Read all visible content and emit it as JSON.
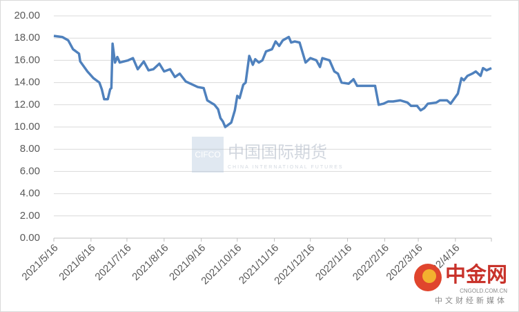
{
  "chart_data": {
    "type": "line",
    "x": [
      "2021/5/16",
      "2021/5/23",
      "2021/5/28",
      "2021/6/1",
      "2021/6/6",
      "2021/6/7",
      "2021/6/13",
      "2021/6/18",
      "2021/6/23",
      "2021/6/25",
      "2021/6/27",
      "2021/6/30",
      "2021/7/2",
      "2021/7/3",
      "2021/7/4",
      "2021/7/6",
      "2021/7/8",
      "2021/7/10",
      "2021/7/17",
      "2021/7/21",
      "2021/7/25",
      "2021/7/30",
      "2021/8/3",
      "2021/8/7",
      "2021/8/12",
      "2021/8/16",
      "2021/8/21",
      "2021/8/25",
      "2021/8/29",
      "2021/9/3",
      "2021/9/9",
      "2021/9/13",
      "2021/9/18",
      "2021/9/21",
      "2021/9/24",
      "2021/9/27",
      "2021/9/30",
      "2021/10/2",
      "2021/10/4",
      "2021/10/6",
      "2021/10/11",
      "2021/10/14",
      "2021/10/16",
      "2021/10/18",
      "2021/10/21",
      "2021/10/23",
      "2021/10/26",
      "2021/10/29",
      "2021/10/31",
      "2021/11/3",
      "2021/11/6",
      "2021/11/9",
      "2021/11/14",
      "2021/11/17",
      "2021/11/20",
      "2021/11/23",
      "2021/11/28",
      "2021/11/30",
      "2021/12/3",
      "2021/12/7",
      "2021/12/12",
      "2021/12/16",
      "2021/12/21",
      "2021/12/24",
      "2021/12/26",
      "2022/1/1",
      "2022/1/5",
      "2022/1/8",
      "2022/1/11",
      "2022/1/17",
      "2022/1/21",
      "2022/1/24",
      "2022/1/31",
      "2022/2/8",
      "2022/2/11",
      "2022/2/15",
      "2022/2/19",
      "2022/2/23",
      "2022/3/1",
      "2022/3/7",
      "2022/3/10",
      "2022/3/15",
      "2022/3/18",
      "2022/3/21",
      "2022/3/24",
      "2022/3/31",
      "2022/4/3",
      "2022/4/9",
      "2022/4/12",
      "2022/4/16",
      "2022/4/18",
      "2022/4/21",
      "2022/4/23",
      "2022/4/26",
      "2022/4/30",
      "2022/5/3",
      "2022/5/7",
      "2022/5/9",
      "2022/5/12",
      "2022/5/16"
    ],
    "series": [
      {
        "color": "#4f81bd",
        "values": [
          18.2,
          18.1,
          17.8,
          17.0,
          16.6,
          15.9,
          15.0,
          14.4,
          14.0,
          13.4,
          12.5,
          12.5,
          13.4,
          13.5,
          17.5,
          15.8,
          16.3,
          15.8,
          16.0,
          16.2,
          15.2,
          15.9,
          15.1,
          15.2,
          15.7,
          15.0,
          15.2,
          14.5,
          14.8,
          14.1,
          13.8,
          13.6,
          13.5,
          12.4,
          12.2,
          12.0,
          11.6,
          10.8,
          10.5,
          10.0,
          10.4,
          11.5,
          12.8,
          12.6,
          13.8,
          14.0,
          16.4,
          15.6,
          16.1,
          15.8,
          16.0,
          16.8,
          17.0,
          17.7,
          17.3,
          17.8,
          18.1,
          17.6,
          17.7,
          17.6,
          15.8,
          16.2,
          16.0,
          15.4,
          16.2,
          16.0,
          15.0,
          14.8,
          14.0,
          13.9,
          14.3,
          13.7,
          13.7,
          13.7,
          12.0,
          12.1,
          12.3,
          12.3,
          12.4,
          12.2,
          11.9,
          11.9,
          11.5,
          11.7,
          12.1,
          12.2,
          12.4,
          12.4,
          12.1,
          12.7,
          13.0,
          14.4,
          14.2,
          14.6,
          14.8,
          15.0,
          14.6,
          15.3,
          15.1,
          15.3
        ]
      }
    ],
    "xlim": [
      "2021/5/16",
      "2022/5/16"
    ],
    "xticks": [
      "2021/5/16",
      "2021/6/16",
      "2021/7/16",
      "2021/8/16",
      "2021/9/16",
      "2021/10/16",
      "2021/11/16",
      "2021/12/16",
      "2022/1/16",
      "2022/2/16",
      "2022/3/16",
      "2022/4/16"
    ],
    "ylim": [
      0,
      20
    ],
    "yticks": [
      {
        "value": 0,
        "label": "0.00"
      },
      {
        "value": 2,
        "label": "2.00"
      },
      {
        "value": 4,
        "label": "4.00"
      },
      {
        "value": 6,
        "label": "6.00"
      },
      {
        "value": 8,
        "label": "8.00"
      },
      {
        "value": 10,
        "label": "10.00"
      },
      {
        "value": 12,
        "label": "12.00"
      },
      {
        "value": 14,
        "label": "14.00"
      },
      {
        "value": 16,
        "label": "16.00"
      },
      {
        "value": 18,
        "label": "18.00"
      },
      {
        "value": 20,
        "label": "20.00"
      }
    ],
    "grid": true
  },
  "watermarks": {
    "cifco": "CIFCO",
    "cifco_cn": "中国国际期货",
    "cifco_en": "CHINA INTERNATIONAL FUTURES",
    "site_cn": "中金网",
    "site_url": "CNGOLD.COM.CN",
    "site_slogan": "中文财经新媒体"
  }
}
